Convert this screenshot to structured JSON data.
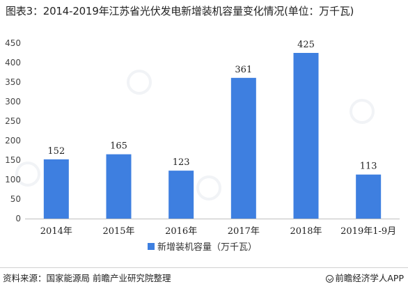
{
  "title": "图表3：2014-2019年江苏省光伏发电新增装机容量变化情况(单位：万千瓦)",
  "chart_data": {
    "type": "bar",
    "categories": [
      "2014年",
      "2015年",
      "2016年",
      "2017年",
      "2018年",
      "2019年1-9月"
    ],
    "series": [
      {
        "name": "新增装机容量（万千瓦）",
        "values": [
          152,
          165,
          123,
          361,
          425,
          113
        ],
        "color": "#3e7fe0"
      }
    ],
    "ylim": [
      0,
      450
    ],
    "yticks": [
      0,
      50,
      100,
      150,
      200,
      250,
      300,
      350,
      400,
      450
    ],
    "grid": false,
    "legend": "bottom",
    "xlabel": "",
    "ylabel": ""
  },
  "footer": {
    "source": "资料来源：国家能源局 前瞻产业研究院整理",
    "brand": "前瞻经济学人APP"
  }
}
